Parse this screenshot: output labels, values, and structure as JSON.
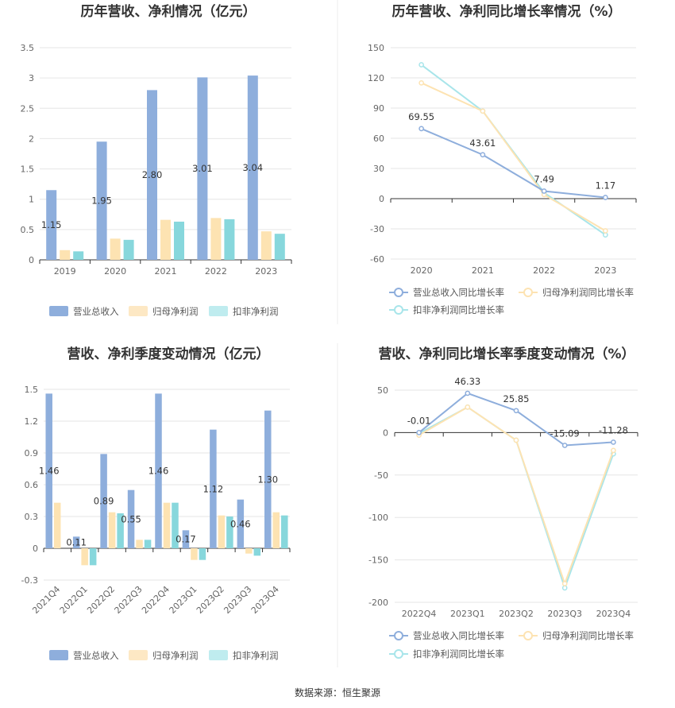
{
  "colors": {
    "revenue": "#8eaedc",
    "net_profit": "#fde3b2",
    "deducted_profit": "#87d7dc",
    "revenue_line": "#8eaedc",
    "net_profit_line": "#fde3b2",
    "deducted_profit_line": "#a8e5ea",
    "net_profit_legend": "#fde8c4",
    "deducted_profit_legend": "#bfecef"
  },
  "source": "数据来源：恒生聚源",
  "chart_data": [
    {
      "type": "bar",
      "title": "历年营收、净利情况（亿元）",
      "categories": [
        "2019",
        "2020",
        "2021",
        "2022",
        "2023"
      ],
      "series": [
        {
          "name": "营业总收入",
          "values": [
            1.15,
            1.95,
            2.8,
            3.01,
            3.04
          ]
        },
        {
          "name": "归母净利润",
          "values": [
            0.16,
            0.35,
            0.66,
            0.69,
            0.47
          ]
        },
        {
          "name": "扣非净利润",
          "values": [
            0.14,
            0.33,
            0.63,
            0.67,
            0.43
          ]
        }
      ],
      "data_labels": [
        "1.15",
        "1.95",
        "2.80",
        "3.01",
        "3.04"
      ],
      "yticks": [
        "0",
        "0.5",
        "1",
        "1.5",
        "2",
        "2.5",
        "3",
        "3.5"
      ],
      "ylim": [
        0,
        3.5
      ],
      "grid": true,
      "legend_position": "bottom"
    },
    {
      "type": "line",
      "title": "历年营收、净利同比增长率情况（%）",
      "categories": [
        "2020",
        "2021",
        "2022",
        "2023"
      ],
      "series": [
        {
          "name": "营业总收入同比增长率",
          "values": [
            69.55,
            43.61,
            7.49,
            1.17
          ]
        },
        {
          "name": "归母净利润同比增长率",
          "values": [
            115,
            87,
            4,
            -32
          ]
        },
        {
          "name": "扣非净利润同比增长率",
          "values": [
            133,
            87,
            6,
            -36
          ]
        }
      ],
      "data_labels": [
        "69.55",
        "43.61",
        "7.49",
        "1.17"
      ],
      "yticks": [
        "-60",
        "-30",
        "0",
        "30",
        "60",
        "90",
        "120",
        "150"
      ],
      "ylim": [
        -60,
        150
      ],
      "grid": true,
      "legend_position": "bottom"
    },
    {
      "type": "bar",
      "title": "营收、净利季度变动情况（亿元）",
      "categories": [
        "2021Q4",
        "2022Q1",
        "2022Q2",
        "2022Q3",
        "2022Q4",
        "2023Q1",
        "2023Q2",
        "2023Q3",
        "2023Q4"
      ],
      "series": [
        {
          "name": "营业总收入",
          "values": [
            1.46,
            0.11,
            0.89,
            0.55,
            1.46,
            0.17,
            1.12,
            0.46,
            1.3
          ]
        },
        {
          "name": "归母净利润",
          "values": [
            0.43,
            -0.16,
            0.34,
            0.08,
            0.43,
            -0.11,
            0.31,
            -0.05,
            0.34
          ]
        },
        {
          "name": "扣非净利润",
          "values": [
            0.0,
            -0.16,
            0.33,
            0.08,
            0.43,
            -0.11,
            0.3,
            -0.07,
            0.31
          ]
        }
      ],
      "data_labels": [
        "1.46",
        "0.11",
        "0.89",
        "0.55",
        "1.46",
        "0.17",
        "1.12",
        "0.46",
        "1.30"
      ],
      "yticks": [
        "-0.3",
        "0",
        "0.3",
        "0.6",
        "0.9",
        "1.2",
        "1.5"
      ],
      "ylim": [
        -0.3,
        1.5
      ],
      "grid": true,
      "legend_position": "bottom"
    },
    {
      "type": "line",
      "title": "营收、净利同比增长率季度变动情况（%）",
      "categories": [
        "2022Q4",
        "2023Q1",
        "2023Q2",
        "2023Q3",
        "2023Q4"
      ],
      "series": [
        {
          "name": "营业总收入同比增长率",
          "values": [
            -0.01,
            46.33,
            25.85,
            -15.09,
            -11.28
          ]
        },
        {
          "name": "归母净利润同比增长率",
          "values": [
            -3,
            30,
            -9,
            -178,
            -21
          ]
        },
        {
          "name": "扣非净利润同比增长率",
          "values": [
            -1,
            30,
            -9,
            -183,
            -25
          ]
        }
      ],
      "data_labels": [
        "-0.01",
        "46.33",
        "25.85",
        "-15.09",
        "-11.28"
      ],
      "yticks": [
        "-200",
        "-150",
        "-100",
        "-50",
        "0",
        "50"
      ],
      "ylim": [
        -200,
        50
      ],
      "grid": true,
      "legend_position": "bottom"
    }
  ]
}
